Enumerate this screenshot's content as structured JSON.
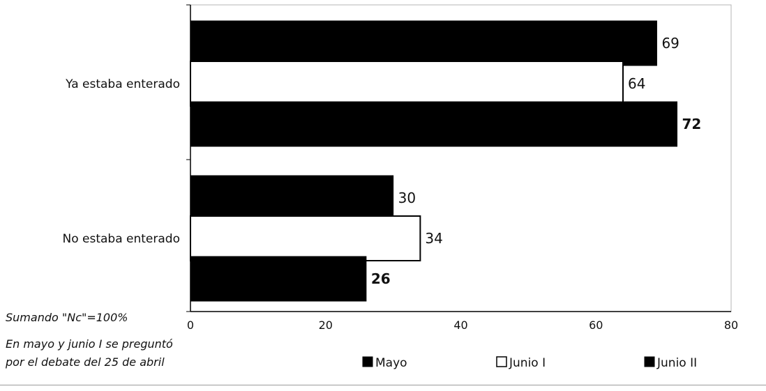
{
  "chart_data": {
    "type": "bar",
    "orientation": "horizontal",
    "categories": [
      "Ya estaba enterado",
      "No estaba enterado"
    ],
    "series": [
      {
        "name": "Mayo",
        "values": [
          69,
          30
        ],
        "color": "#000000"
      },
      {
        "name": "Junio I",
        "values": [
          64,
          34
        ],
        "color": "#ffffff"
      },
      {
        "name": "Junio II",
        "values": [
          72,
          26
        ],
        "color": "#000000"
      }
    ],
    "bold_labels_series": "Junio II",
    "xlim": [
      0,
      80
    ],
    "xticks": [
      "0",
      "20",
      "40",
      "60",
      "80"
    ],
    "grid": false,
    "legend_position": "bottom"
  },
  "notes": [
    "Sumando \"Nc\"=100%",
    "En mayo y junio I se preguntó",
    "por el debate del 25 de abril"
  ]
}
